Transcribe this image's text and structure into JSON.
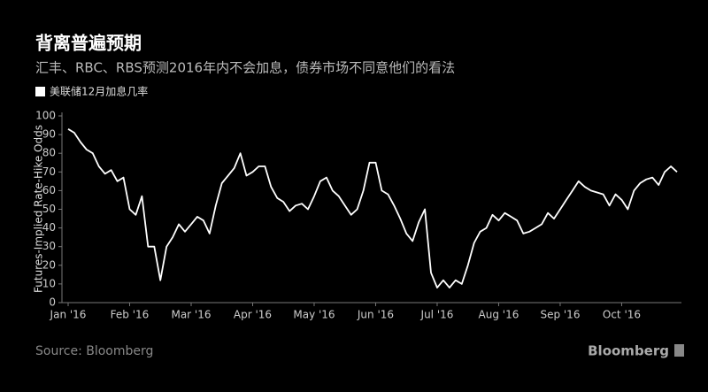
{
  "chart_data": {
    "type": "line",
    "title": "背离普遍预期",
    "subtitle": "汇丰、RBC、RBS预测2016年内不会加息，债券市场不同意他们的看法",
    "y_label": "Futures-Implied Rate-Hike Odds",
    "source": "Source: Bloomberg",
    "brand": "Bloomberg",
    "categories": [
      "Jan '16",
      null,
      null,
      null,
      null,
      null,
      null,
      null,
      null,
      null,
      "Feb '16",
      null,
      null,
      null,
      null,
      null,
      null,
      null,
      null,
      null,
      "Mar '16",
      null,
      null,
      null,
      null,
      null,
      null,
      null,
      null,
      null,
      "Apr '16",
      null,
      null,
      null,
      null,
      null,
      null,
      null,
      null,
      null,
      "May '16",
      null,
      null,
      null,
      null,
      null,
      null,
      null,
      null,
      null,
      "Jun '16",
      null,
      null,
      null,
      null,
      null,
      null,
      null,
      null,
      null,
      "Jul '16",
      null,
      null,
      null,
      null,
      null,
      null,
      null,
      null,
      null,
      "Aug '16",
      null,
      null,
      null,
      null,
      null,
      null,
      null,
      null,
      null,
      "Sep '16",
      null,
      null,
      null,
      null,
      null,
      null,
      null,
      null,
      null,
      "Oct '16",
      null,
      null,
      null,
      null,
      null,
      null,
      null,
      null,
      null
    ],
    "series": [
      {
        "name": "美联储12月加息几率",
        "color": "#ffffff",
        "values": [
          93,
          91,
          86,
          82,
          80,
          73,
          69,
          71,
          65,
          67,
          50,
          47,
          57,
          30,
          30,
          12,
          30,
          35,
          42,
          38,
          42,
          46,
          44,
          37,
          52,
          64,
          68,
          72,
          80,
          68,
          70,
          73,
          73,
          62,
          56,
          54,
          49,
          52,
          53,
          50,
          57,
          65,
          67,
          60,
          57,
          52,
          47,
          50,
          60,
          75,
          75,
          60,
          58,
          52,
          45,
          37,
          33,
          43,
          50,
          16,
          8,
          12,
          8,
          12,
          10,
          20,
          32,
          38,
          40,
          47,
          44,
          48,
          46,
          44,
          37,
          38,
          40,
          42,
          48,
          45,
          50,
          55,
          60,
          65,
          62,
          60,
          59,
          58,
          52,
          58,
          55,
          50,
          60,
          64,
          66,
          67,
          63,
          70,
          73,
          70
        ]
      }
    ],
    "ylim": [
      0,
      100
    ],
    "yticks": [
      0,
      10,
      20,
      30,
      40,
      50,
      60,
      70,
      80,
      90,
      100
    ],
    "grid": false
  }
}
